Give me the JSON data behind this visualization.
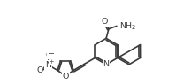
{
  "bg_color": "#ffffff",
  "line_color": "#3a3a3a",
  "line_width": 1.2,
  "font_size": 6.8,
  "xlim": [
    0.0,
    10.5
  ],
  "ylim": [
    0.5,
    6.5
  ]
}
